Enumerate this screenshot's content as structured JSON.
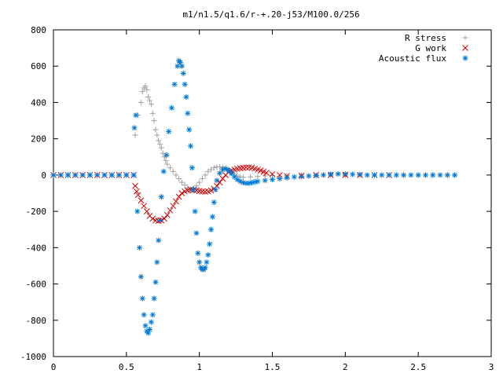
{
  "chart_data": {
    "type": "scatter",
    "title": "m1/n1.5/q1.6/r-+.20-j53/M100.0/256",
    "xlabel": "",
    "ylabel": "",
    "xlim": [
      0,
      3
    ],
    "ylim": [
      -1000,
      800
    ],
    "x_ticks": [
      "0",
      "0.5",
      "1",
      "1.5",
      "2",
      "2.5",
      "3"
    ],
    "y_ticks": [
      "800",
      "600",
      "400",
      "200",
      "0",
      "-200",
      "-400",
      "-600",
      "-800",
      "-1000"
    ],
    "grid": false,
    "legend_position": "top-right",
    "series": [
      {
        "name": "R stress",
        "marker": "plus",
        "color": "#a0a0a0",
        "points": [
          [
            0.0,
            0
          ],
          [
            0.05,
            0
          ],
          [
            0.1,
            0
          ],
          [
            0.15,
            0
          ],
          [
            0.2,
            0
          ],
          [
            0.25,
            0
          ],
          [
            0.3,
            0
          ],
          [
            0.35,
            0
          ],
          [
            0.4,
            0
          ],
          [
            0.45,
            0
          ],
          [
            0.5,
            0
          ],
          [
            0.55,
            0
          ],
          [
            0.56,
            220
          ],
          [
            0.58,
            330
          ],
          [
            0.6,
            400
          ],
          [
            0.61,
            460
          ],
          [
            0.62,
            480
          ],
          [
            0.63,
            490
          ],
          [
            0.64,
            470
          ],
          [
            0.65,
            430
          ],
          [
            0.66,
            410
          ],
          [
            0.67,
            390
          ],
          [
            0.68,
            340
          ],
          [
            0.69,
            300
          ],
          [
            0.7,
            250
          ],
          [
            0.71,
            220
          ],
          [
            0.72,
            190
          ],
          [
            0.73,
            170
          ],
          [
            0.74,
            150
          ],
          [
            0.75,
            120
          ],
          [
            0.76,
            100
          ],
          [
            0.77,
            80
          ],
          [
            0.78,
            60
          ],
          [
            0.8,
            40
          ],
          [
            0.82,
            20
          ],
          [
            0.84,
            0
          ],
          [
            0.86,
            -20
          ],
          [
            0.88,
            -40
          ],
          [
            0.9,
            -55
          ],
          [
            0.92,
            -70
          ],
          [
            0.94,
            -80
          ],
          [
            0.96,
            -75
          ],
          [
            0.98,
            -60
          ],
          [
            1.0,
            -40
          ],
          [
            1.02,
            -20
          ],
          [
            1.04,
            0
          ],
          [
            1.06,
            20
          ],
          [
            1.08,
            30
          ],
          [
            1.1,
            40
          ],
          [
            1.12,
            45
          ],
          [
            1.14,
            45
          ],
          [
            1.16,
            42
          ],
          [
            1.18,
            38
          ],
          [
            1.2,
            30
          ],
          [
            1.22,
            20
          ],
          [
            1.24,
            5
          ],
          [
            1.26,
            -5
          ],
          [
            1.28,
            -10
          ],
          [
            1.3,
            -12
          ],
          [
            1.35,
            -10
          ],
          [
            1.4,
            -8
          ],
          [
            1.45,
            -5
          ],
          [
            1.5,
            -3
          ],
          [
            1.6,
            -2
          ],
          [
            1.7,
            0
          ],
          [
            1.8,
            0
          ],
          [
            1.9,
            0
          ],
          [
            2.0,
            0
          ],
          [
            2.1,
            0
          ],
          [
            2.2,
            0
          ],
          [
            2.3,
            0
          ],
          [
            2.4,
            0
          ],
          [
            2.5,
            0
          ],
          [
            2.6,
            0
          ],
          [
            2.7,
            0
          ],
          [
            2.75,
            0
          ]
        ]
      },
      {
        "name": "G work",
        "marker": "cross",
        "color": "#cc0000",
        "points": [
          [
            0.0,
            0
          ],
          [
            0.05,
            0
          ],
          [
            0.1,
            0
          ],
          [
            0.15,
            0
          ],
          [
            0.2,
            0
          ],
          [
            0.25,
            0
          ],
          [
            0.3,
            0
          ],
          [
            0.35,
            0
          ],
          [
            0.4,
            0
          ],
          [
            0.45,
            0
          ],
          [
            0.5,
            0
          ],
          [
            0.55,
            0
          ],
          [
            0.56,
            -60
          ],
          [
            0.57,
            -90
          ],
          [
            0.58,
            -110
          ],
          [
            0.6,
            -140
          ],
          [
            0.62,
            -170
          ],
          [
            0.64,
            -200
          ],
          [
            0.66,
            -225
          ],
          [
            0.68,
            -240
          ],
          [
            0.7,
            -250
          ],
          [
            0.72,
            -252
          ],
          [
            0.74,
            -250
          ],
          [
            0.76,
            -240
          ],
          [
            0.78,
            -220
          ],
          [
            0.8,
            -195
          ],
          [
            0.82,
            -170
          ],
          [
            0.84,
            -145
          ],
          [
            0.86,
            -120
          ],
          [
            0.88,
            -100
          ],
          [
            0.9,
            -90
          ],
          [
            0.92,
            -85
          ],
          [
            0.94,
            -80
          ],
          [
            0.96,
            -82
          ],
          [
            0.98,
            -85
          ],
          [
            1.0,
            -88
          ],
          [
            1.02,
            -90
          ],
          [
            1.04,
            -92
          ],
          [
            1.06,
            -90
          ],
          [
            1.08,
            -85
          ],
          [
            1.1,
            -75
          ],
          [
            1.12,
            -60
          ],
          [
            1.14,
            -40
          ],
          [
            1.16,
            -20
          ],
          [
            1.18,
            0
          ],
          [
            1.2,
            15
          ],
          [
            1.22,
            25
          ],
          [
            1.24,
            30
          ],
          [
            1.26,
            35
          ],
          [
            1.28,
            38
          ],
          [
            1.3,
            40
          ],
          [
            1.32,
            42
          ],
          [
            1.34,
            42
          ],
          [
            1.36,
            40
          ],
          [
            1.38,
            35
          ],
          [
            1.4,
            30
          ],
          [
            1.42,
            25
          ],
          [
            1.44,
            18
          ],
          [
            1.46,
            12
          ],
          [
            1.5,
            5
          ],
          [
            1.55,
            0
          ],
          [
            1.6,
            -5
          ],
          [
            1.7,
            -3
          ],
          [
            1.8,
            0
          ],
          [
            1.9,
            0
          ],
          [
            2.0,
            0
          ],
          [
            2.1,
            0
          ],
          [
            2.2,
            0
          ],
          [
            2.3,
            0
          ]
        ]
      },
      {
        "name": "Acoustic flux",
        "marker": "star",
        "color": "#0078d4",
        "points": [
          [
            0.0,
            0
          ],
          [
            0.05,
            0
          ],
          [
            0.1,
            0
          ],
          [
            0.15,
            0
          ],
          [
            0.2,
            0
          ],
          [
            0.25,
            0
          ],
          [
            0.3,
            0
          ],
          [
            0.35,
            0
          ],
          [
            0.4,
            0
          ],
          [
            0.45,
            0
          ],
          [
            0.5,
            0
          ],
          [
            0.55,
            0
          ],
          [
            0.555,
            260
          ],
          [
            0.565,
            330
          ],
          [
            0.575,
            -200
          ],
          [
            0.59,
            -400
          ],
          [
            0.6,
            -560
          ],
          [
            0.61,
            -680
          ],
          [
            0.62,
            -770
          ],
          [
            0.63,
            -830
          ],
          [
            0.64,
            -860
          ],
          [
            0.65,
            -870
          ],
          [
            0.66,
            -850
          ],
          [
            0.67,
            -810
          ],
          [
            0.68,
            -770
          ],
          [
            0.69,
            -680
          ],
          [
            0.7,
            -590
          ],
          [
            0.71,
            -480
          ],
          [
            0.72,
            -360
          ],
          [
            0.73,
            -250
          ],
          [
            0.74,
            -120
          ],
          [
            0.755,
            20
          ],
          [
            0.775,
            110
          ],
          [
            0.79,
            240
          ],
          [
            0.81,
            370
          ],
          [
            0.83,
            500
          ],
          [
            0.85,
            600
          ],
          [
            0.86,
            630
          ],
          [
            0.87,
            620
          ],
          [
            0.88,
            600
          ],
          [
            0.89,
            560
          ],
          [
            0.9,
            500
          ],
          [
            0.91,
            430
          ],
          [
            0.92,
            340
          ],
          [
            0.93,
            250
          ],
          [
            0.94,
            160
          ],
          [
            0.95,
            40
          ],
          [
            0.96,
            -80
          ],
          [
            0.97,
            -200
          ],
          [
            0.98,
            -320
          ],
          [
            0.99,
            -430
          ],
          [
            1.0,
            -480
          ],
          [
            1.01,
            -510
          ],
          [
            1.02,
            -520
          ],
          [
            1.03,
            -520
          ],
          [
            1.04,
            -510
          ],
          [
            1.05,
            -480
          ],
          [
            1.06,
            -440
          ],
          [
            1.07,
            -380
          ],
          [
            1.08,
            -300
          ],
          [
            1.09,
            -230
          ],
          [
            1.1,
            -150
          ],
          [
            1.11,
            -80
          ],
          [
            1.12,
            -30
          ],
          [
            1.14,
            10
          ],
          [
            1.16,
            30
          ],
          [
            1.18,
            35
          ],
          [
            1.2,
            25
          ],
          [
            1.22,
            10
          ],
          [
            1.24,
            -10
          ],
          [
            1.26,
            -25
          ],
          [
            1.28,
            -35
          ],
          [
            1.3,
            -42
          ],
          [
            1.32,
            -45
          ],
          [
            1.34,
            -45
          ],
          [
            1.36,
            -42
          ],
          [
            1.38,
            -38
          ],
          [
            1.4,
            -35
          ],
          [
            1.45,
            -30
          ],
          [
            1.5,
            -25
          ],
          [
            1.55,
            -20
          ],
          [
            1.6,
            -15
          ],
          [
            1.65,
            -10
          ],
          [
            1.7,
            -8
          ],
          [
            1.75,
            -5
          ],
          [
            1.8,
            -3
          ],
          [
            1.85,
            0
          ],
          [
            1.9,
            5
          ],
          [
            1.95,
            6
          ],
          [
            2.0,
            5
          ],
          [
            2.05,
            4
          ],
          [
            2.1,
            3
          ],
          [
            2.15,
            0
          ],
          [
            2.2,
            0
          ],
          [
            2.25,
            0
          ],
          [
            2.3,
            0
          ],
          [
            2.35,
            0
          ],
          [
            2.4,
            0
          ],
          [
            2.45,
            0
          ],
          [
            2.5,
            0
          ],
          [
            2.55,
            0
          ],
          [
            2.6,
            0
          ],
          [
            2.65,
            0
          ],
          [
            2.7,
            0
          ],
          [
            2.75,
            0
          ]
        ]
      }
    ]
  }
}
